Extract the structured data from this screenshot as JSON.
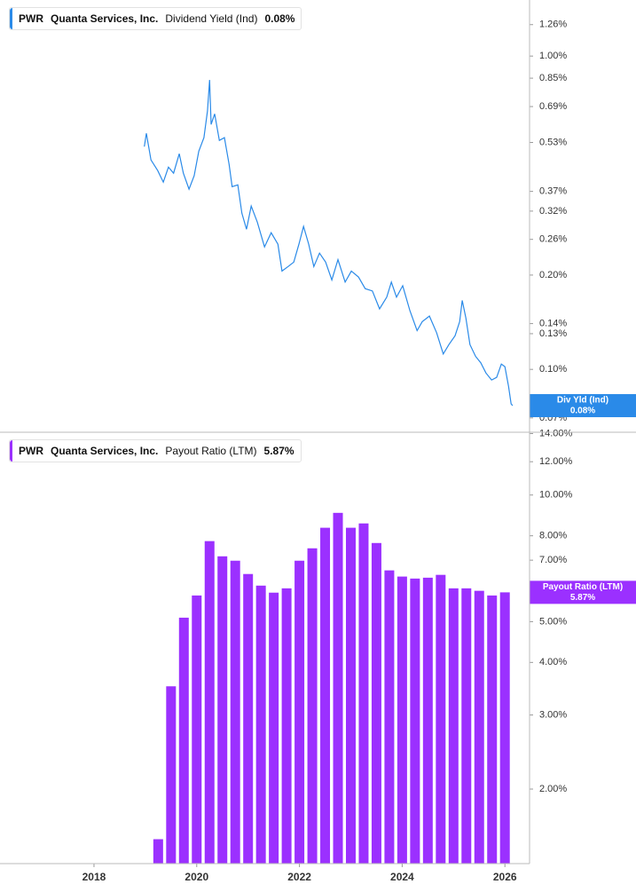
{
  "chart_data": [
    {
      "type": "line",
      "ticker": "PWR",
      "company": "Quanta Services, Inc.",
      "title": "Dividend Yield (Ind)",
      "last_label": "0.08%",
      "badge_title": "Div Yld (Ind)",
      "color": "#2a8ae8",
      "log_scale": true,
      "x": [
        2018.98,
        2019.02,
        2019.11,
        2019.24,
        2019.35,
        2019.45,
        2019.55,
        2019.66,
        2019.74,
        2019.85,
        2019.95,
        2020.04,
        2020.14,
        2020.21,
        2020.25,
        2020.28,
        2020.35,
        2020.44,
        2020.54,
        2020.63,
        2020.69,
        2020.8,
        2020.88,
        2020.97,
        2021.06,
        2021.18,
        2021.32,
        2021.45,
        2021.58,
        2021.66,
        2021.78,
        2021.89,
        2021.99,
        2022.08,
        2022.18,
        2022.28,
        2022.39,
        2022.51,
        2022.63,
        2022.75,
        2022.89,
        2023.01,
        2023.15,
        2023.28,
        2023.42,
        2023.56,
        2023.7,
        2023.79,
        2023.89,
        2024.01,
        2024.15,
        2024.29,
        2024.39,
        2024.53,
        2024.67,
        2024.8,
        2024.91,
        2025.03,
        2025.12,
        2025.17,
        2025.24,
        2025.32,
        2025.43,
        2025.53,
        2025.63,
        2025.74,
        2025.84,
        2025.93,
        2026.0,
        2026.07,
        2026.12,
        2026.15
      ],
      "values": [
        0.514,
        0.567,
        0.466,
        0.431,
        0.396,
        0.442,
        0.423,
        0.488,
        0.423,
        0.376,
        0.415,
        0.497,
        0.549,
        0.668,
        0.839,
        0.605,
        0.654,
        0.538,
        0.549,
        0.451,
        0.383,
        0.388,
        0.315,
        0.28,
        0.332,
        0.295,
        0.246,
        0.273,
        0.251,
        0.206,
        0.213,
        0.22,
        0.251,
        0.286,
        0.251,
        0.213,
        0.235,
        0.22,
        0.193,
        0.224,
        0.19,
        0.206,
        0.197,
        0.181,
        0.178,
        0.156,
        0.17,
        0.19,
        0.17,
        0.185,
        0.154,
        0.133,
        0.142,
        0.148,
        0.131,
        0.112,
        0.12,
        0.128,
        0.142,
        0.166,
        0.146,
        0.12,
        0.11,
        0.105,
        0.0974,
        0.0925,
        0.0943,
        0.104,
        0.102,
        0.0883,
        0.0776,
        0.0766
      ],
      "xlim": [
        2016.17,
        2026.48
      ],
      "ylim": [
        0.063,
        1.51
      ],
      "yticks": [
        {
          "value": 1.26,
          "label": "1.26%"
        },
        {
          "value": 1.0,
          "label": "1.00%"
        },
        {
          "value": 0.85,
          "label": "0.85%"
        },
        {
          "value": 0.69,
          "label": "0.69%"
        },
        {
          "value": 0.53,
          "label": "0.53%"
        },
        {
          "value": 0.37,
          "label": "0.37%"
        },
        {
          "value": 0.32,
          "label": "0.32%"
        },
        {
          "value": 0.26,
          "label": "0.26%"
        },
        {
          "value": 0.2,
          "label": "0.20%"
        },
        {
          "value": 0.14,
          "label": "0.14%"
        },
        {
          "value": 0.13,
          "label": "0.13%"
        },
        {
          "value": 0.1,
          "label": "0.10%"
        },
        {
          "value": 0.07,
          "label": "0.07%"
        }
      ]
    },
    {
      "type": "bar",
      "ticker": "PWR",
      "company": "Quanta Services, Inc.",
      "title": "Payout Ratio (LTM)",
      "last_label": "5.87%",
      "badge_title": "Payout Ratio (LTM)",
      "color": "#9b30ff",
      "log_scale": true,
      "x": [
        2019.25,
        2019.5,
        2019.75,
        2020.0,
        2020.25,
        2020.5,
        2020.75,
        2021.0,
        2021.25,
        2021.5,
        2021.75,
        2022.0,
        2022.25,
        2022.5,
        2022.75,
        2023.0,
        2023.25,
        2023.5,
        2023.75,
        2024.0,
        2024.25,
        2024.5,
        2024.75,
        2025.0,
        2025.25,
        2025.5,
        2025.75,
        2026.0
      ],
      "values": [
        1.52,
        3.51,
        5.11,
        5.77,
        7.77,
        7.15,
        6.98,
        6.49,
        6.09,
        5.86,
        6.0,
        6.98,
        7.47,
        8.36,
        9.07,
        8.36,
        8.56,
        7.69,
        6.62,
        6.4,
        6.33,
        6.36,
        6.46,
        6.0,
        6.0,
        5.92,
        5.77,
        5.87
      ],
      "xlim": [
        2016.17,
        2026.48
      ],
      "ylim": [
        1.33,
        14.1
      ],
      "xticks": [
        2018,
        2020,
        2022,
        2024,
        2026
      ],
      "yticks": [
        {
          "value": 14,
          "label": "14.00%"
        },
        {
          "value": 12,
          "label": "12.00%"
        },
        {
          "value": 10,
          "label": "10.00%"
        },
        {
          "value": 8,
          "label": "8.00%"
        },
        {
          "value": 7,
          "label": "7.00%"
        },
        {
          "value": 5,
          "label": "5.00%"
        },
        {
          "value": 4,
          "label": "4.00%"
        },
        {
          "value": 3,
          "label": "3.00%"
        },
        {
          "value": 2,
          "label": "2.00%"
        }
      ]
    }
  ]
}
